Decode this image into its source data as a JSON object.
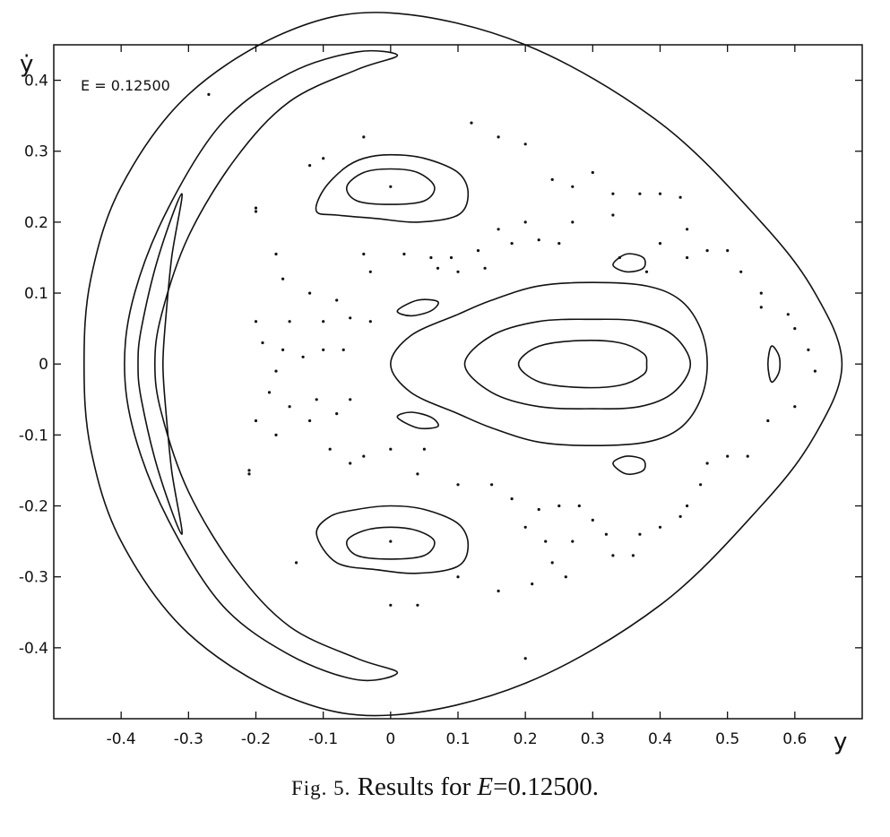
{
  "chart_data": {
    "type": "scatter",
    "title": "",
    "annotation": "E = 0.12500",
    "xlabel": "y",
    "ylabel": "ẏ",
    "xlim": [
      -0.5,
      0.7
    ],
    "ylim": [
      -0.5,
      0.45
    ],
    "xticks": [
      -0.4,
      -0.3,
      -0.2,
      -0.1,
      0,
      0.1,
      0.2,
      0.3,
      0.4,
      0.5,
      0.6
    ],
    "yticks": [
      -0.4,
      -0.3,
      -0.2,
      -0.1,
      0,
      0.1,
      0.2,
      0.3,
      0.4
    ],
    "xtick_labels": [
      "-0.4",
      "-0.3",
      "-0.2",
      "-0.1",
      "0",
      "0.1",
      "0.2",
      "0.3",
      "0.4",
      "0.5",
      "0.6"
    ],
    "ytick_labels": [
      "-0.4",
      "-0.3",
      "-0.2",
      "-0.1",
      "0",
      "0.1",
      "0.2",
      "0.3",
      "0.4"
    ],
    "grid": false,
    "series": [
      {
        "kind": "closed",
        "points": [
          [
            0.0,
            0.495
          ],
          [
            0.2,
            0.45
          ],
          [
            0.4,
            0.34
          ],
          [
            0.55,
            0.2
          ],
          [
            0.63,
            0.1
          ],
          [
            0.67,
            0.0
          ],
          [
            0.63,
            -0.1
          ],
          [
            0.55,
            -0.2
          ],
          [
            0.4,
            -0.34
          ],
          [
            0.2,
            -0.45
          ],
          [
            0.0,
            -0.495
          ],
          [
            -0.15,
            -0.47
          ],
          [
            -0.3,
            -0.38
          ],
          [
            -0.4,
            -0.25
          ],
          [
            -0.445,
            -0.12
          ],
          [
            -0.455,
            0.0
          ],
          [
            -0.445,
            0.12
          ],
          [
            -0.4,
            0.25
          ],
          [
            -0.3,
            0.38
          ],
          [
            -0.15,
            0.47
          ]
        ]
      },
      {
        "kind": "closed",
        "points": [
          [
            0.01,
            0.435
          ],
          [
            -0.05,
            0.44
          ],
          [
            -0.15,
            0.41
          ],
          [
            -0.25,
            0.34
          ],
          [
            -0.33,
            0.22
          ],
          [
            -0.38,
            0.1
          ],
          [
            -0.395,
            0.0
          ],
          [
            -0.38,
            -0.1
          ],
          [
            -0.33,
            -0.22
          ],
          [
            -0.25,
            -0.34
          ],
          [
            -0.15,
            -0.41
          ],
          [
            -0.05,
            -0.445
          ],
          [
            0.01,
            -0.435
          ],
          [
            -0.05,
            -0.415
          ],
          [
            -0.15,
            -0.37
          ],
          [
            -0.23,
            -0.29
          ],
          [
            -0.3,
            -0.18
          ],
          [
            -0.34,
            -0.07
          ],
          [
            -0.35,
            0.0
          ],
          [
            -0.34,
            0.07
          ],
          [
            -0.3,
            0.18
          ],
          [
            -0.23,
            0.29
          ],
          [
            -0.15,
            0.37
          ],
          [
            -0.05,
            0.415
          ]
        ]
      },
      {
        "kind": "closed",
        "points": [
          [
            -0.31,
            0.24
          ],
          [
            -0.345,
            0.15
          ],
          [
            -0.37,
            0.05
          ],
          [
            -0.375,
            0.0
          ],
          [
            -0.37,
            -0.05
          ],
          [
            -0.345,
            -0.15
          ],
          [
            -0.31,
            -0.24
          ],
          [
            -0.325,
            -0.15
          ],
          [
            -0.335,
            -0.05
          ],
          [
            -0.338,
            0.0
          ],
          [
            -0.335,
            0.05
          ],
          [
            -0.325,
            0.15
          ]
        ]
      },
      {
        "kind": "closed",
        "points": [
          [
            0.0,
            0.295
          ],
          [
            0.05,
            0.29
          ],
          [
            0.1,
            0.27
          ],
          [
            0.115,
            0.24
          ],
          [
            0.1,
            0.21
          ],
          [
            0.04,
            0.2
          ],
          [
            -0.02,
            0.205
          ],
          [
            -0.08,
            0.21
          ],
          [
            -0.11,
            0.215
          ],
          [
            -0.1,
            0.245
          ],
          [
            -0.07,
            0.275
          ],
          [
            -0.04,
            0.29
          ]
        ]
      },
      {
        "kind": "closed",
        "points": [
          [
            0.0,
            0.275
          ],
          [
            0.04,
            0.27
          ],
          [
            0.065,
            0.25
          ],
          [
            0.05,
            0.23
          ],
          [
            0.0,
            0.225
          ],
          [
            -0.05,
            0.23
          ],
          [
            -0.065,
            0.25
          ],
          [
            -0.04,
            0.27
          ]
        ]
      },
      {
        "kind": "closed",
        "points": [
          [
            0.0,
            -0.2
          ],
          [
            0.05,
            -0.205
          ],
          [
            0.1,
            -0.225
          ],
          [
            0.115,
            -0.255
          ],
          [
            0.1,
            -0.285
          ],
          [
            0.04,
            -0.295
          ],
          [
            -0.02,
            -0.29
          ],
          [
            -0.08,
            -0.28
          ],
          [
            -0.11,
            -0.24
          ],
          [
            -0.09,
            -0.215
          ],
          [
            -0.05,
            -0.205
          ]
        ]
      },
      {
        "kind": "closed",
        "points": [
          [
            0.0,
            -0.23
          ],
          [
            0.04,
            -0.235
          ],
          [
            0.065,
            -0.25
          ],
          [
            0.05,
            -0.27
          ],
          [
            0.0,
            -0.275
          ],
          [
            -0.05,
            -0.27
          ],
          [
            -0.065,
            -0.25
          ],
          [
            -0.04,
            -0.235
          ]
        ]
      },
      {
        "kind": "closed",
        "points": [
          [
            0.0,
            0.0
          ],
          [
            0.03,
            0.04
          ],
          [
            0.1,
            0.07
          ],
          [
            0.15,
            0.09
          ],
          [
            0.22,
            0.11
          ],
          [
            0.3,
            0.115
          ],
          [
            0.38,
            0.11
          ],
          [
            0.43,
            0.09
          ],
          [
            0.46,
            0.05
          ],
          [
            0.47,
            0.0
          ],
          [
            0.46,
            -0.05
          ],
          [
            0.43,
            -0.09
          ],
          [
            0.38,
            -0.11
          ],
          [
            0.3,
            -0.115
          ],
          [
            0.22,
            -0.11
          ],
          [
            0.15,
            -0.09
          ],
          [
            0.1,
            -0.07
          ],
          [
            0.03,
            -0.04
          ]
        ]
      },
      {
        "kind": "closed",
        "points": [
          [
            0.11,
            0.0
          ],
          [
            0.15,
            0.04
          ],
          [
            0.22,
            0.06
          ],
          [
            0.3,
            0.063
          ],
          [
            0.37,
            0.06
          ],
          [
            0.42,
            0.04
          ],
          [
            0.445,
            0.0
          ],
          [
            0.42,
            -0.04
          ],
          [
            0.37,
            -0.06
          ],
          [
            0.3,
            -0.063
          ],
          [
            0.22,
            -0.06
          ],
          [
            0.15,
            -0.04
          ]
        ]
      },
      {
        "kind": "closed",
        "points": [
          [
            0.19,
            0.0
          ],
          [
            0.22,
            0.025
          ],
          [
            0.28,
            0.033
          ],
          [
            0.34,
            0.03
          ],
          [
            0.375,
            0.015
          ],
          [
            0.38,
            0.0
          ],
          [
            0.375,
            -0.015
          ],
          [
            0.34,
            -0.03
          ],
          [
            0.28,
            -0.033
          ],
          [
            0.22,
            -0.025
          ]
        ]
      },
      {
        "kind": "closed",
        "points": [
          [
            0.01,
            0.075
          ],
          [
            0.04,
            0.09
          ],
          [
            0.07,
            0.088
          ],
          [
            0.06,
            0.075
          ],
          [
            0.03,
            0.068
          ]
        ]
      },
      {
        "kind": "closed",
        "points": [
          [
            0.01,
            -0.075
          ],
          [
            0.04,
            -0.09
          ],
          [
            0.07,
            -0.088
          ],
          [
            0.06,
            -0.075
          ],
          [
            0.03,
            -0.068
          ]
        ]
      },
      {
        "kind": "closed",
        "points": [
          [
            0.33,
            0.14
          ],
          [
            0.35,
            0.155
          ],
          [
            0.375,
            0.15
          ],
          [
            0.375,
            0.135
          ],
          [
            0.35,
            0.13
          ]
        ]
      },
      {
        "kind": "closed",
        "points": [
          [
            0.33,
            -0.14
          ],
          [
            0.35,
            -0.155
          ],
          [
            0.375,
            -0.15
          ],
          [
            0.375,
            -0.135
          ],
          [
            0.35,
            -0.13
          ]
        ]
      },
      {
        "kind": "closed",
        "points": [
          [
            0.565,
            0.025
          ],
          [
            0.575,
            0.015
          ],
          [
            0.578,
            0.0
          ],
          [
            0.575,
            -0.015
          ],
          [
            0.565,
            -0.025
          ],
          [
            0.56,
            0.0
          ]
        ]
      },
      {
        "kind": "scatter",
        "points": [
          [
            -0.2,
            0.22
          ],
          [
            -0.2,
            0.215
          ],
          [
            -0.21,
            -0.155
          ],
          [
            -0.21,
            -0.15
          ],
          [
            -0.14,
            -0.28
          ],
          [
            -0.12,
            0.28
          ],
          [
            -0.1,
            0.29
          ],
          [
            -0.04,
            0.32
          ],
          [
            0.12,
            0.34
          ],
          [
            0.16,
            0.32
          ],
          [
            0.2,
            0.31
          ],
          [
            0.24,
            0.26
          ],
          [
            0.27,
            0.25
          ],
          [
            0.3,
            0.27
          ],
          [
            0.33,
            0.24
          ],
          [
            0.37,
            0.24
          ],
          [
            0.4,
            0.24
          ],
          [
            0.43,
            0.235
          ],
          [
            0.27,
            0.2
          ],
          [
            0.33,
            0.21
          ],
          [
            0.2,
            0.2
          ],
          [
            0.16,
            0.19
          ],
          [
            0.22,
            0.175
          ],
          [
            0.25,
            0.17
          ],
          [
            0.18,
            0.17
          ],
          [
            0.13,
            0.16
          ],
          [
            0.09,
            0.15
          ],
          [
            0.06,
            0.15
          ],
          [
            0.07,
            0.135
          ],
          [
            0.1,
            0.13
          ],
          [
            0.14,
            0.135
          ],
          [
            0.02,
            0.155
          ],
          [
            -0.04,
            0.155
          ],
          [
            -0.03,
            0.13
          ],
          [
            -0.17,
            0.155
          ],
          [
            -0.16,
            0.12
          ],
          [
            -0.12,
            0.1
          ],
          [
            -0.08,
            0.09
          ],
          [
            -0.06,
            0.065
          ],
          [
            -0.03,
            0.06
          ],
          [
            -0.1,
            0.06
          ],
          [
            -0.15,
            0.06
          ],
          [
            -0.2,
            0.06
          ],
          [
            -0.19,
            0.03
          ],
          [
            -0.16,
            0.02
          ],
          [
            -0.13,
            0.01
          ],
          [
            -0.1,
            0.02
          ],
          [
            -0.07,
            0.02
          ],
          [
            -0.17,
            -0.01
          ],
          [
            -0.18,
            -0.04
          ],
          [
            -0.15,
            -0.06
          ],
          [
            -0.11,
            -0.05
          ],
          [
            -0.08,
            -0.07
          ],
          [
            -0.06,
            -0.05
          ],
          [
            -0.12,
            -0.08
          ],
          [
            -0.2,
            -0.08
          ],
          [
            -0.17,
            -0.1
          ],
          [
            -0.09,
            -0.12
          ],
          [
            -0.04,
            -0.13
          ],
          [
            -0.06,
            -0.14
          ],
          [
            0.0,
            -0.12
          ],
          [
            0.05,
            -0.12
          ],
          [
            0.04,
            -0.155
          ],
          [
            0.1,
            -0.17
          ],
          [
            0.15,
            -0.17
          ],
          [
            0.18,
            -0.19
          ],
          [
            0.22,
            -0.205
          ],
          [
            0.25,
            -0.2
          ],
          [
            0.28,
            -0.2
          ],
          [
            0.3,
            -0.22
          ],
          [
            0.32,
            -0.24
          ],
          [
            0.37,
            -0.24
          ],
          [
            0.4,
            -0.23
          ],
          [
            0.43,
            -0.215
          ],
          [
            0.44,
            -0.2
          ],
          [
            0.46,
            -0.17
          ],
          [
            0.47,
            -0.14
          ],
          [
            0.5,
            -0.13
          ],
          [
            0.53,
            -0.13
          ],
          [
            0.56,
            -0.08
          ],
          [
            0.55,
            0.08
          ],
          [
            0.59,
            0.07
          ],
          [
            0.6,
            0.05
          ],
          [
            0.62,
            0.02
          ],
          [
            0.63,
            -0.01
          ],
          [
            0.6,
            -0.06
          ],
          [
            0.55,
            0.1
          ],
          [
            0.52,
            0.13
          ],
          [
            0.5,
            0.16
          ],
          [
            0.47,
            0.16
          ],
          [
            0.44,
            0.15
          ],
          [
            0.38,
            0.13
          ],
          [
            0.34,
            0.15
          ],
          [
            0.4,
            0.17
          ],
          [
            0.44,
            0.19
          ],
          [
            0.2,
            -0.23
          ],
          [
            0.23,
            -0.25
          ],
          [
            0.27,
            -0.25
          ],
          [
            0.33,
            -0.27
          ],
          [
            0.36,
            -0.27
          ],
          [
            0.24,
            -0.28
          ],
          [
            0.26,
            -0.3
          ],
          [
            0.21,
            -0.31
          ],
          [
            0.16,
            -0.32
          ],
          [
            0.1,
            -0.3
          ],
          [
            0.04,
            -0.34
          ],
          [
            0.0,
            -0.34
          ],
          [
            0.2,
            -0.415
          ],
          [
            -0.27,
            0.38
          ],
          [
            0.0,
            0.25
          ],
          [
            0.0,
            -0.25
          ]
        ]
      }
    ]
  },
  "caption": {
    "fig": "Fig. 5.",
    "text": "Results for",
    "var": "E",
    "value": "=0.12500."
  }
}
